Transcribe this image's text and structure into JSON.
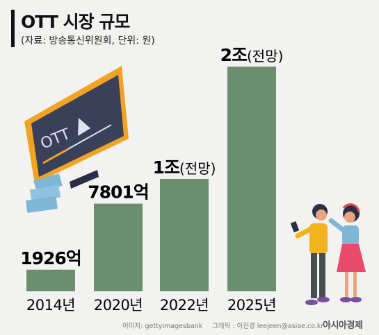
{
  "header": {
    "title": "OTT 시장 규모",
    "subtitle": "(자료: 방송통신위원회, 단위: 원)"
  },
  "chart_data": {
    "type": "bar",
    "categories": [
      "2014년",
      "2020년",
      "2022년",
      "2025년"
    ],
    "values": [
      1926,
      7801,
      10000,
      20000
    ],
    "unit": "억 원",
    "value_labels": [
      {
        "main": "1926억",
        "note": ""
      },
      {
        "main": "7801억",
        "note": ""
      },
      {
        "main": "1조",
        "note": "(전망)"
      },
      {
        "main": "2조",
        "note": "(전망)"
      }
    ],
    "ylim": [
      0,
      20000
    ],
    "grid": false,
    "bar_color": "#6b8f6e"
  },
  "illustration": {
    "tv_screen_text": "OTT"
  },
  "footer": {
    "image_credit": "이미지: gettyimagesbank",
    "graphic_credit": "그래픽 : 이진경 leejeen@asiae.co.kr",
    "logo_text": "아시아경제"
  },
  "colors": {
    "background": "#f2f2f0",
    "bar": "#6b8f6e",
    "tv_frame": "#f0a325",
    "tv_screen": "#3a3f5a",
    "money": "#7fb6d6"
  }
}
